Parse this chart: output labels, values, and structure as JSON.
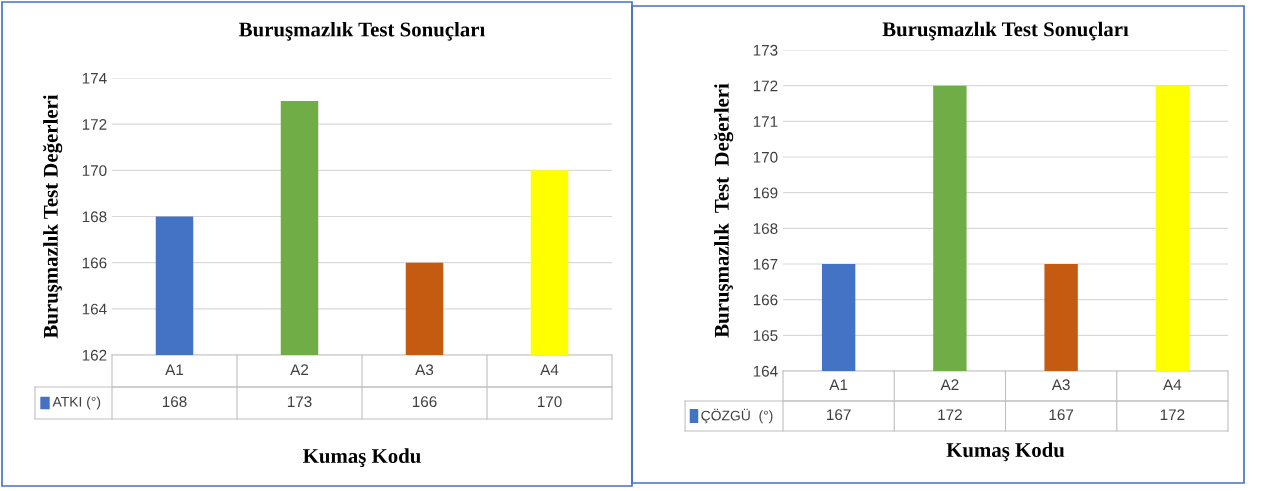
{
  "chart_data": [
    {
      "type": "bar",
      "title": "Buruşmazlık Test Sonuçları",
      "xlabel": "Kumaş Kodu",
      "ylabel": "Buruşmazlık Test Değerleri",
      "categories": [
        "A1",
        "A2",
        "A3",
        "A4"
      ],
      "series": [
        {
          "name": "ATKI (°)",
          "color": "#4472c4",
          "colors": [
            "#4472c4",
            "#70ad47",
            "#c55a11",
            "#ffff00"
          ],
          "values": [
            168,
            173,
            166,
            170
          ]
        }
      ],
      "ylim": [
        162,
        174
      ],
      "yticks": [
        162,
        164,
        166,
        168,
        170,
        172,
        174
      ],
      "grid": "y",
      "data_labels": true,
      "legend": "bottom"
    },
    {
      "type": "bar",
      "title": "Buruşmazlık Test Sonuçları",
      "xlabel": "Kumaş Kodu",
      "ylabel": "Buruşmazlık  Test  Değerleri",
      "categories": [
        "A1",
        "A2",
        "A3",
        "A4"
      ],
      "series": [
        {
          "name": "ÇÖZGÜ  (°)",
          "color": "#4472c4",
          "colors": [
            "#4472c4",
            "#70ad47",
            "#c55a11",
            "#ffff00"
          ],
          "values": [
            167,
            172,
            167,
            172
          ]
        }
      ],
      "ylim": [
        164,
        173
      ],
      "yticks": [
        164,
        165,
        166,
        167,
        168,
        169,
        170,
        171,
        172,
        173
      ],
      "grid": "y",
      "data_labels": true,
      "legend": "bottom"
    }
  ]
}
